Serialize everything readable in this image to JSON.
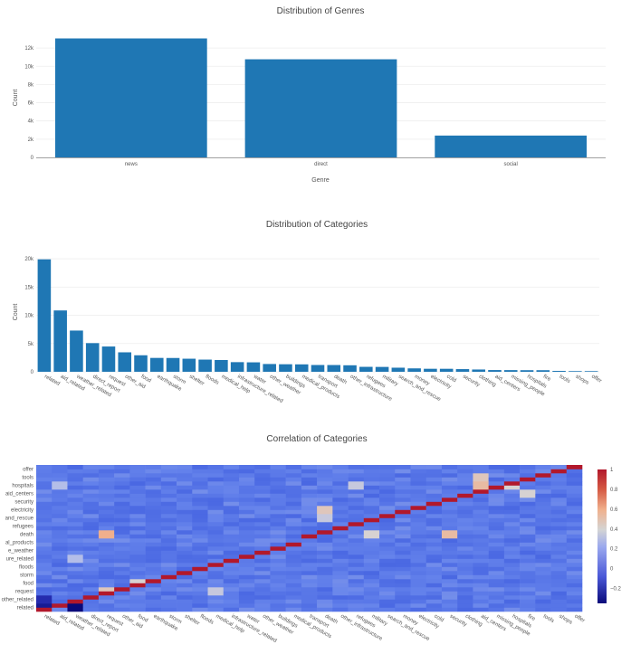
{
  "chart_data": [
    {
      "type": "bar",
      "title": "Distribution of Genres",
      "xlabel": "Genre",
      "ylabel": "Count",
      "categories": [
        "news",
        "direct",
        "social"
      ],
      "values": [
        13054,
        10766,
        2396
      ],
      "ylim": [
        0,
        13500
      ],
      "ytick_labels": [
        "0",
        "2k",
        "4k",
        "6k",
        "8k",
        "10k",
        "12k"
      ],
      "grid": true,
      "color": "#1f77b4"
    },
    {
      "type": "bar",
      "title": "Distribution of Categories",
      "xlabel": "",
      "ylabel": "Count",
      "categories": [
        "related",
        "aid_related",
        "weather_related",
        "direct_report",
        "request",
        "other_aid",
        "food",
        "earthquake",
        "storm",
        "shelter",
        "floods",
        "medical_help",
        "infrastructure_related",
        "water",
        "other_weather",
        "buildings",
        "medical_products",
        "transport",
        "death",
        "other_infrastructure",
        "refugees",
        "military",
        "search_and_rescue",
        "money",
        "electricity",
        "cold",
        "security",
        "clothing",
        "aid_centers",
        "missing_people",
        "hospitals",
        "fire",
        "tools",
        "shops",
        "offer"
      ],
      "values": [
        19906,
        10860,
        7297,
        5075,
        4474,
        3446,
        2923,
        2455,
        2443,
        2314,
        2155,
        2084,
        1705,
        1672,
        1376,
        1333,
        1313,
        1201,
        1194,
        1151,
        875,
        860,
        724,
        604,
        532,
        530,
        471,
        405,
        309,
        298,
        283,
        282,
        159,
        120,
        118
      ],
      "ylim": [
        0,
        20500
      ],
      "ytick_labels": [
        "0",
        "5k",
        "10k",
        "15k",
        "20k"
      ],
      "grid": true,
      "color": "#1f77b4"
    },
    {
      "type": "heatmap",
      "title": "Correlation of Categories",
      "colorscale": "RdBu_r",
      "zrange": [
        -0.35,
        1
      ],
      "colorbar_ticks": [
        "1",
        "0.8",
        "0.6",
        "0.4",
        "0.2",
        "0",
        "−0.2"
      ],
      "x_labels": [
        "related",
        "aid_related",
        "weather_related",
        "direct_report",
        "request",
        "other_aid",
        "food",
        "earthquake",
        "storm",
        "shelter",
        "floods",
        "medical_help",
        "infrastructure_related",
        "water",
        "other_weather",
        "buildings",
        "medical_products",
        "transport",
        "death",
        "other_infrastructure",
        "refugees",
        "military",
        "search_and_rescue",
        "money",
        "electricity",
        "cold",
        "security",
        "clothing",
        "aid_centers",
        "missing_people",
        "hospitals",
        "fire",
        "tools",
        "shops",
        "offer"
      ],
      "y_labels": [
        "related",
        "other_related",
        "request",
        "food",
        "storm",
        "floods",
        "ure_related",
        "e_weather",
        "al_products",
        "death",
        "refugees",
        "and_rescue",
        "electricity",
        "security",
        "aid_centers",
        "hospitals",
        "tools",
        "offer"
      ],
      "highlights": [
        {
          "col": 28,
          "row": 16,
          "value": 0.45
        },
        {
          "col": 28,
          "row": 15,
          "value": 0.5
        },
        {
          "col": 18,
          "row": 12,
          "value": 0.45
        },
        {
          "col": 18,
          "row": 11,
          "value": 0.35
        },
        {
          "col": 4,
          "row": 9,
          "value": 0.55
        },
        {
          "col": 4,
          "row": 2,
          "value": 0.45
        },
        {
          "col": 1,
          "row": 15,
          "value": 0.3
        },
        {
          "col": 20,
          "row": 15,
          "value": 0.35
        },
        {
          "col": 31,
          "row": 14,
          "value": 0.4
        },
        {
          "col": 30,
          "row": 15,
          "value": 0.4
        },
        {
          "col": 21,
          "row": 9,
          "value": 0.4
        },
        {
          "col": 26,
          "row": 9,
          "value": 0.5
        },
        {
          "col": 2,
          "row": 6,
          "value": 0.3
        },
        {
          "col": 11,
          "row": 2,
          "value": 0.35
        },
        {
          "col": 6,
          "row": 3,
          "value": 0.4
        },
        {
          "col": 0,
          "row": 0,
          "value": -0.3
        },
        {
          "col": 2,
          "row": 0,
          "value": -0.35
        },
        {
          "col": 0,
          "row": 1,
          "value": -0.25
        }
      ]
    }
  ]
}
